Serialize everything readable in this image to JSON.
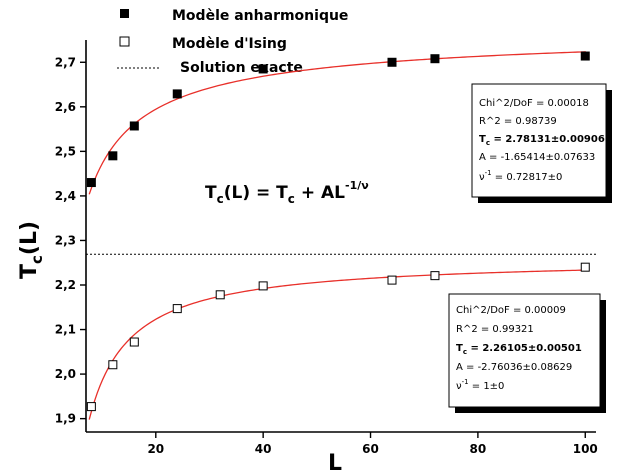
{
  "chart_data": {
    "type": "scatter",
    "xlabel": "L",
    "ylabel_main": "T",
    "ylabel_sub": "c",
    "ylabel_rest": "(L)",
    "xlim": [
      7,
      102
    ],
    "ylim": [
      1.87,
      2.75
    ],
    "x_ticks": [
      20,
      40,
      60,
      80,
      100
    ],
    "y_ticks": [
      "1,9",
      "2,0",
      "2,1",
      "2,2",
      "2,3",
      "2,4",
      "2,5",
      "2,6",
      "2,7"
    ],
    "y_tick_values": [
      1.9,
      2.0,
      2.1,
      2.2,
      2.3,
      2.4,
      2.5,
      2.6,
      2.7
    ],
    "legend": [
      {
        "label": "Modèle anharmonique",
        "marker": "filled-square"
      },
      {
        "label": "Modèle d'Ising",
        "marker": "open-square"
      },
      {
        "label": "Solution exacte",
        "marker": "dotted-line"
      }
    ],
    "series": [
      {
        "name": "Modèle anharmonique",
        "marker": "filled-square",
        "points": [
          [
            8,
            2.43
          ],
          [
            12,
            2.49
          ],
          [
            16,
            2.557
          ],
          [
            24,
            2.629
          ],
          [
            40,
            2.685
          ],
          [
            64,
            2.7
          ],
          [
            72,
            2.708
          ],
          [
            100,
            2.714
          ]
        ],
        "fit": {
          "Tc": 2.78131,
          "A": -1.65414,
          "nu_inv": 0.72817
        }
      },
      {
        "name": "Modèle d'Ising",
        "marker": "open-square",
        "points": [
          [
            8,
            1.927
          ],
          [
            12,
            2.021
          ],
          [
            16,
            2.072
          ],
          [
            24,
            2.147
          ],
          [
            32,
            2.178
          ],
          [
            40,
            2.198
          ],
          [
            64,
            2.211
          ],
          [
            72,
            2.221
          ],
          [
            100,
            2.24
          ]
        ],
        "fit": {
          "Tc": 2.26105,
          "A": -2.76036,
          "nu_inv": 1.0
        }
      }
    ],
    "exact_solution": 2.269,
    "curve_color": "#e8302a",
    "equation": "T",
    "equation_sub": "c",
    "equation_mid": "(L) = T",
    "equation_mid_sub": "c",
    "equation_end": " + AL",
    "equation_exp": "-1/ν",
    "fit_boxes": [
      {
        "chi": "Chi^2/DoF = 0.00018",
        "r2": "R^2 = 0.98739",
        "tc_prefix": "T",
        "tc_sub": "c",
        "tc_value": " = 2.78131±0.00906",
        "a": "A = -1.65414±0.07633",
        "nu_prefix": "ν",
        "nu_exp": "-1",
        "nu_value": " = 0.72817±0"
      },
      {
        "chi": "Chi^2/DoF = 0.00009",
        "r2": "R^2 = 0.99321",
        "tc_prefix": "T",
        "tc_sub": "c",
        "tc_value": " = 2.26105±0.00501",
        "a": "A = -2.76036±0.08629",
        "nu_prefix": "ν",
        "nu_exp": "-1",
        "nu_value": " = 1±0"
      }
    ]
  }
}
